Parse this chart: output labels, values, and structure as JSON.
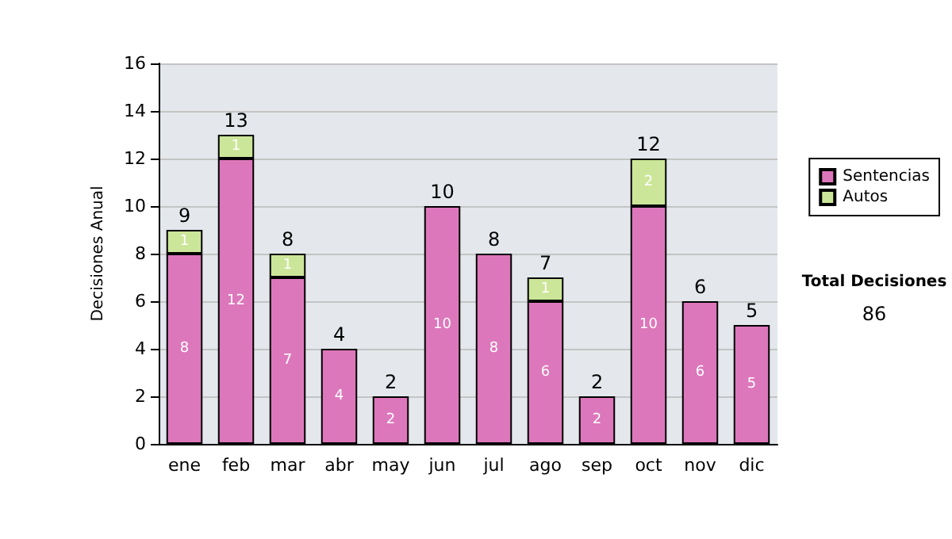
{
  "chart_data": {
    "type": "bar",
    "stacked": true,
    "ylabel": "Decisiones Anual",
    "categories": [
      "ene",
      "feb",
      "mar",
      "abr",
      "may",
      "jun",
      "jul",
      "ago",
      "sep",
      "oct",
      "nov",
      "dic"
    ],
    "series": [
      {
        "name": "Sentencias",
        "color": "#dd77bb",
        "values": [
          8,
          12,
          7,
          4,
          2,
          10,
          8,
          6,
          2,
          10,
          6,
          5
        ],
        "value_labels": [
          "8",
          "12",
          "7",
          "4",
          "2",
          "10",
          "8",
          "6",
          "2",
          "10",
          "6",
          "5"
        ]
      },
      {
        "name": "Autos",
        "color": "#cce699",
        "values": [
          1,
          1,
          1,
          0,
          0,
          0,
          0,
          1,
          0,
          2,
          0,
          0
        ],
        "value_labels": [
          "1",
          "1",
          "1",
          null,
          null,
          null,
          null,
          "1",
          null,
          "2",
          null,
          null
        ]
      }
    ],
    "totals": [
      "9",
      "13",
      "8",
      "4",
      "2",
      "10",
      "8",
      "7",
      "2",
      "12",
      "6",
      "5"
    ],
    "ylim": [
      0,
      16
    ],
    "yticks": [
      0,
      2,
      4,
      6,
      8,
      10,
      12,
      14,
      16
    ],
    "grid": "y",
    "legend": "right",
    "annotations": [
      "Total Decisiones",
      "86"
    ]
  }
}
